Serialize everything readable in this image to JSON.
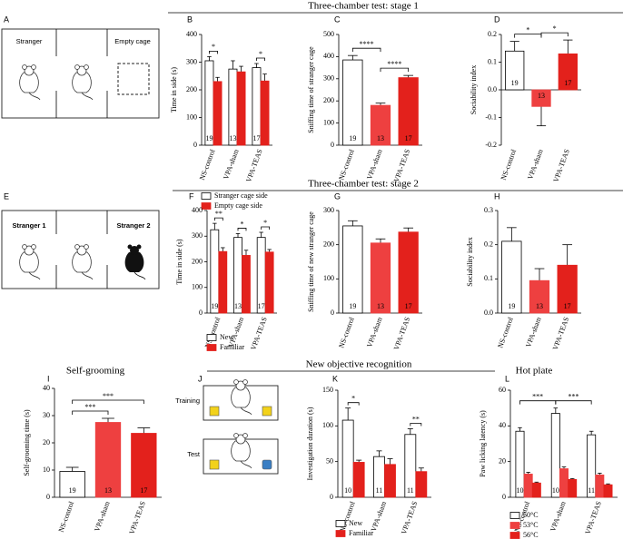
{
  "figure": {
    "headings": [
      "Three-chamber test: stage 1",
      "Three-chamber test: stage 2",
      "Self-grooming",
      "New objective recognition",
      "Hot plate"
    ],
    "panels": [
      "A",
      "B",
      "C",
      "D",
      "E",
      "F",
      "G",
      "H",
      "I",
      "J",
      "K",
      "L"
    ],
    "stage1_diagram": [
      "Stranger",
      "Empty cage"
    ],
    "stage2_diagram": [
      "Stranger 1",
      "Stranger 2"
    ],
    "nor_diagram": [
      "Training",
      "Test"
    ]
  },
  "chart_data": [
    {
      "type": "bar",
      "ylabel": "Time in side (s)",
      "categories": [
        "NS-control",
        "VPA-sham",
        "VPA-TEAS"
      ],
      "ylim": [
        0,
        400
      ],
      "yticks": [
        0,
        100,
        200,
        300,
        400
      ],
      "series": [
        {
          "name": "Stranger cage side",
          "color": "#ffffff",
          "values": [
            305,
            275,
            280
          ],
          "errors": [
            15,
            30,
            15
          ]
        },
        {
          "name": "Empty cage side",
          "color": "#e3211c",
          "values": [
            230,
            265,
            232
          ],
          "errors": [
            15,
            20,
            25
          ]
        }
      ],
      "n": [
        19,
        13,
        17
      ],
      "significance": [
        "*",
        null,
        "*"
      ]
    },
    {
      "type": "bar",
      "ylabel": "Sniffing time of stranger cage",
      "categories": [
        "NS-control",
        "VPA-sham",
        "VPA-TEAS"
      ],
      "ylim": [
        0,
        500
      ],
      "yticks": [
        0,
        100,
        200,
        300,
        400,
        500
      ],
      "values": [
        385,
        180,
        305
      ],
      "errors": [
        20,
        10,
        10
      ],
      "colors": [
        "#ffffff",
        "#ee4040",
        "#e3211c"
      ],
      "n": [
        19,
        13,
        17
      ],
      "comparisons": [
        {
          "label": "****",
          "pair": [
            "NS-control",
            "VPA-sham"
          ]
        },
        {
          "label": "****",
          "pair": [
            "VPA-sham",
            "VPA-TEAS"
          ]
        }
      ]
    },
    {
      "type": "bar",
      "ylabel": "Sociability index",
      "categories": [
        "NS-control",
        "VPA-sham",
        "VPA-TEAS"
      ],
      "ylim": [
        -0.2,
        0.2
      ],
      "yticks": [
        -0.2,
        -0.1,
        {
          "value": 0,
          "label": "0.0"
        },
        0.1,
        0.2
      ],
      "values": [
        0.14,
        -0.06,
        0.13
      ],
      "errors": [
        0.035,
        0.07,
        0.05
      ],
      "colors": [
        "#ffffff",
        "#ee4040",
        "#e3211c"
      ],
      "n": [
        19,
        13,
        17
      ],
      "comparisons": [
        {
          "label": "*",
          "pair": [
            "NS-control",
            "VPA-sham"
          ]
        },
        {
          "label": "*",
          "pair": [
            "VPA-sham",
            "VPA-TEAS"
          ]
        }
      ]
    },
    {
      "type": "bar",
      "ylabel": "Time in side (s)",
      "categories": [
        "NS-control",
        "VPA-sham",
        "VPA-TEAS"
      ],
      "ylim": [
        0,
        400
      ],
      "yticks": [
        0,
        100,
        200,
        300,
        400
      ],
      "series": [
        {
          "name": "New",
          "color": "#ffffff",
          "values": [
            325,
            295,
            295
          ],
          "errors": [
            25,
            15,
            20
          ]
        },
        {
          "name": "Familiar",
          "color": "#e3211c",
          "values": [
            240,
            225,
            238
          ],
          "errors": [
            15,
            20,
            10
          ]
        }
      ],
      "n": [
        19,
        13,
        17
      ],
      "significance": [
        "**",
        "*",
        "*"
      ]
    },
    {
      "type": "bar",
      "ylabel": "Sniffing time of new stranger cage",
      "categories": [
        "NS-control",
        "VPA-sham",
        "VPA-TEAS"
      ],
      "ylim": [
        0,
        300
      ],
      "yticks": [
        0,
        100,
        200,
        300
      ],
      "values": [
        255,
        205,
        237
      ],
      "errors": [
        15,
        12,
        12
      ],
      "colors": [
        "#ffffff",
        "#ee4040",
        "#e3211c"
      ],
      "n": [
        19,
        13,
        17
      ]
    },
    {
      "type": "bar",
      "ylabel": "Sociability index",
      "categories": [
        "NS-control",
        "VPA-sham",
        "VPA-TEAS"
      ],
      "ylim": [
        0,
        0.3
      ],
      "yticks": [
        {
          "value": 0,
          "label": "0.0"
        },
        0.1,
        0.2,
        0.3
      ],
      "values": [
        0.21,
        0.095,
        0.14
      ],
      "errors": [
        0.04,
        0.035,
        0.06
      ],
      "colors": [
        "#ffffff",
        "#ee4040",
        "#e3211c"
      ],
      "n": [
        19,
        13,
        17
      ]
    },
    {
      "type": "bar",
      "ylabel": "Self-grooming time (s)",
      "categories": [
        "NS-control",
        "VPA-sham",
        "VPA-TEAS"
      ],
      "ylim": [
        0,
        40
      ],
      "yticks": [
        0,
        10,
        20,
        30,
        40
      ],
      "values": [
        9.5,
        27.5,
        23.5
      ],
      "errors": [
        1.5,
        1.5,
        2
      ],
      "colors": [
        "#ffffff",
        "#ee4040",
        "#e3211c"
      ],
      "n": [
        19,
        13,
        17
      ],
      "comparisons": [
        {
          "label": "***",
          "pair": [
            "NS-control",
            "VPA-sham"
          ]
        },
        {
          "label": "***",
          "pair": [
            "NS-control",
            "VPA-TEAS"
          ]
        }
      ]
    },
    {
      "type": "bar",
      "ylabel": "Investigation duration (s)",
      "categories": [
        "NS-control",
        "VPA-sham",
        "VPA-TEAS"
      ],
      "ylim": [
        0,
        150
      ],
      "yticks": [
        0,
        50,
        100,
        150
      ],
      "series": [
        {
          "name": "New",
          "color": "#ffffff",
          "values": [
            108,
            57,
            88
          ],
          "errors": [
            17,
            8,
            8
          ]
        },
        {
          "name": "Familiar",
          "color": "#e3211c",
          "values": [
            49,
            46,
            36
          ],
          "errors": [
            3,
            8,
            5
          ]
        }
      ],
      "n": [
        10,
        11,
        11
      ],
      "significance": [
        "*",
        null,
        "**"
      ]
    },
    {
      "type": "bar",
      "ylabel": "Paw licking latency (s)",
      "categories": [
        "NS-control",
        "VPA-sham",
        "VPA-TEAS"
      ],
      "ylim": [
        0,
        60
      ],
      "yticks": [
        0,
        20,
        40,
        60
      ],
      "series": [
        {
          "name": "50°C",
          "color": "#ffffff",
          "values": [
            37,
            47,
            35
          ],
          "errors": [
            2,
            3,
            2
          ]
        },
        {
          "name": "53°C",
          "color": "#ee4040",
          "values": [
            13,
            16,
            12.5
          ],
          "errors": [
            1,
            1,
            1
          ]
        },
        {
          "name": "56°C",
          "color": "#e3211c",
          "values": [
            8,
            10,
            7
          ],
          "errors": [
            0.5,
            0.5,
            0.5
          ]
        }
      ],
      "n": [
        10,
        10,
        11
      ],
      "comparisons": [
        {
          "label": "***",
          "pair": [
            "NS-control",
            "VPA-sham"
          ]
        },
        {
          "label": "***",
          "pair": [
            "VPA-sham",
            "VPA-TEAS"
          ]
        }
      ]
    }
  ]
}
